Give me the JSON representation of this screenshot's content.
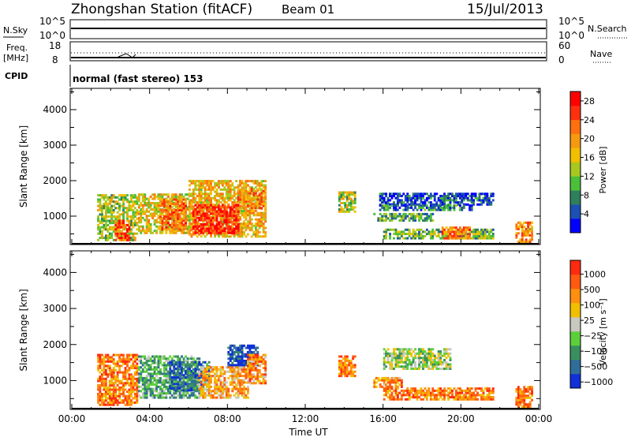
{
  "header": {
    "station": "Zhongshan Station (fitACF)",
    "beam": "Beam 01",
    "date": "15/Jul/2013"
  },
  "strip_labels": {
    "nsky": "N.Sky",
    "nsky_top": "10^5",
    "nsky_bottom": "10^0",
    "nsearch": "N.Search",
    "nsearch_top": "10^5",
    "nsearch_bottom": "10^0",
    "freq": "Freq.",
    "freq_unit": "[MHz]",
    "freq_top": "18",
    "freq_bottom": "8",
    "nave": "Nave",
    "nave_top": "60",
    "nave_bottom": "0",
    "cpid": "CPID",
    "cpid_text": "normal (fast stereo) 153"
  },
  "chart_data": [
    {
      "type": "heatmap",
      "title": "",
      "ylabel": "Slant Range [km]",
      "xlabel": "Time UT",
      "ylim": [
        200,
        4600
      ],
      "xlim": [
        0,
        24
      ],
      "y_ticks": [
        1000,
        2000,
        3000,
        4000
      ],
      "x_ticks": [
        "00:00",
        "04:00",
        "08:00",
        "12:00",
        "16:00",
        "20:00",
        "00:00"
      ],
      "colorbar": {
        "label": "Power [dB]",
        "ticks": [
          "4",
          "8",
          "12",
          "16",
          "20",
          "24",
          "28"
        ],
        "colors": [
          "#0000ff",
          "#1c50b4",
          "#2f7f5d",
          "#4bbf3a",
          "#a8c820",
          "#f0c000",
          "#f59a10",
          "#ff7010",
          "#ff3010",
          "#ff0000"
        ]
      },
      "regions": [
        {
          "t0": 1.3,
          "t1": 3.4,
          "r0": 300,
          "r1": 1600,
          "v": 0.45
        },
        {
          "t0": 2.2,
          "t1": 3.0,
          "r0": 300,
          "r1": 900,
          "v": 0.85
        },
        {
          "t0": 3.4,
          "t1": 6.0,
          "r0": 500,
          "r1": 1600,
          "v": 0.55
        },
        {
          "t0": 4.5,
          "t1": 5.8,
          "r0": 600,
          "r1": 1500,
          "v": 0.75
        },
        {
          "t0": 6.0,
          "t1": 9.9,
          "r0": 400,
          "r1": 2000,
          "v": 0.6
        },
        {
          "t0": 6.2,
          "t1": 8.5,
          "r0": 500,
          "r1": 1300,
          "v": 0.95
        },
        {
          "t0": 8.5,
          "t1": 9.9,
          "r0": 1200,
          "r1": 1800,
          "v": 0.7
        },
        {
          "t0": 13.7,
          "t1": 14.5,
          "r0": 1100,
          "r1": 1700,
          "v": 0.45
        },
        {
          "t0": 15.8,
          "t1": 21.7,
          "r0": 1300,
          "r1": 1650,
          "v": 0.1
        },
        {
          "t0": 15.8,
          "t1": 20.6,
          "r0": 1150,
          "r1": 1300,
          "v": 0.2
        },
        {
          "t0": 15.5,
          "t1": 18.6,
          "r0": 850,
          "r1": 1050,
          "v": 0.3
        },
        {
          "t0": 16.0,
          "t1": 21.7,
          "r0": 350,
          "r1": 650,
          "v": 0.35
        },
        {
          "t0": 19.0,
          "t1": 20.5,
          "r0": 350,
          "r1": 700,
          "v": 0.75
        },
        {
          "t0": 22.8,
          "t1": 23.7,
          "r0": 250,
          "r1": 800,
          "v": 0.7
        }
      ]
    },
    {
      "type": "heatmap",
      "title": "",
      "ylabel": "Slant Range [km]",
      "xlabel": "Time UT",
      "ylim": [
        200,
        4600
      ],
      "xlim": [
        0,
        24
      ],
      "y_ticks": [
        1000,
        2000,
        3000,
        4000
      ],
      "x_ticks": [
        "00:00",
        "04:00",
        "08:00",
        "12:00",
        "16:00",
        "20:00",
        "00:00"
      ],
      "colorbar": {
        "label": "Velocity [m s⁻¹]",
        "ticks": [
          "1000",
          "500",
          "100",
          "25",
          "−25",
          "−100",
          "−500",
          "−1000"
        ],
        "colors": [
          "#1030d8",
          "#2f6e9a",
          "#3a8f5e",
          "#5ccf3a",
          "#c8c8c0",
          "#f0c000",
          "#ff8f10",
          "#ff5a10",
          "#ff2a10"
        ]
      },
      "regions": [
        {
          "t0": 1.3,
          "t1": 3.4,
          "r0": 300,
          "r1": 1700,
          "v": 0.8
        },
        {
          "t0": 3.4,
          "t1": 6.5,
          "r0": 500,
          "r1": 1700,
          "v": 0.3
        },
        {
          "t0": 5.0,
          "t1": 7.0,
          "r0": 700,
          "r1": 1500,
          "v": 0.15
        },
        {
          "t0": 6.5,
          "t1": 9.0,
          "r0": 500,
          "r1": 1400,
          "v": 0.7
        },
        {
          "t0": 8.0,
          "t1": 9.5,
          "r0": 1400,
          "r1": 2000,
          "v": 0.05
        },
        {
          "t0": 9.0,
          "t1": 9.9,
          "r0": 900,
          "r1": 1700,
          "v": 0.75
        },
        {
          "t0": 13.7,
          "t1": 14.5,
          "r0": 1100,
          "r1": 1700,
          "v": 0.8
        },
        {
          "t0": 16.0,
          "t1": 19.5,
          "r0": 1300,
          "r1": 1900,
          "v": 0.45
        },
        {
          "t0": 16.0,
          "t1": 21.7,
          "r0": 450,
          "r1": 800,
          "v": 0.8
        },
        {
          "t0": 15.5,
          "t1": 17.0,
          "r0": 800,
          "r1": 1050,
          "v": 0.75
        },
        {
          "t0": 22.8,
          "t1": 23.7,
          "r0": 250,
          "r1": 800,
          "v": 0.8
        }
      ]
    }
  ]
}
